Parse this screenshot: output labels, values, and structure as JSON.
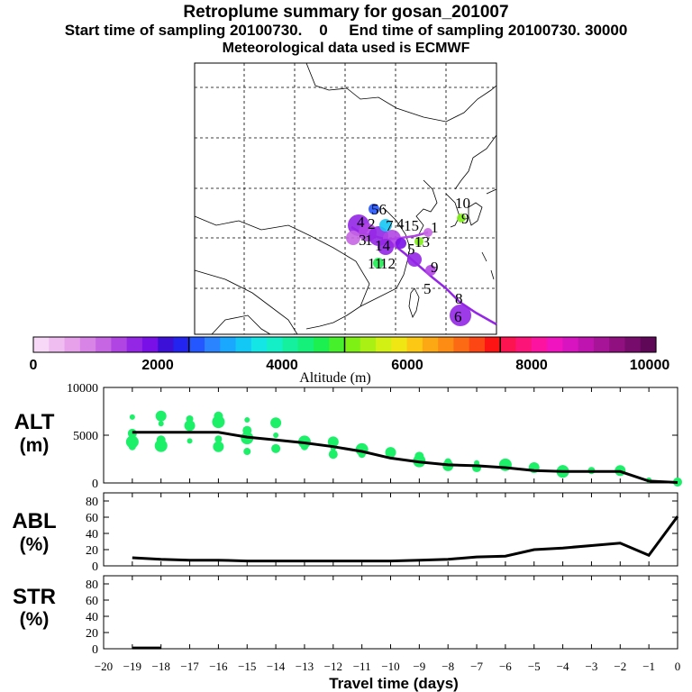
{
  "header": {
    "title": "Retroplume summary for gosan_201007",
    "line2": "Start time of sampling 20100730.    0     End time of sampling 20100730. 30000",
    "line3": "Meteorological data used is ECMWF"
  },
  "colorbar": {
    "ticks": [
      "0",
      "2000",
      "4000",
      "6000",
      "8000",
      "10000"
    ],
    "label": "Altitude (m)",
    "colors": [
      "#f7d9f7",
      "#efbdef",
      "#e6a1ea",
      "#d884e6",
      "#c766e3",
      "#b145e4",
      "#9426e6",
      "#7a10e8",
      "#3c10d6",
      "#2424f0",
      "#2457ff",
      "#2a84ff",
      "#1aa8ff",
      "#14c8f6",
      "#14e6e6",
      "#14efc8",
      "#14f09e",
      "#14f07a",
      "#1cf050",
      "#46f02a",
      "#7ef014",
      "#aaf014",
      "#d2f014",
      "#f0e614",
      "#fcc814",
      "#fca814",
      "#fc8c14",
      "#fc6a14",
      "#fc4614",
      "#fc1414",
      "#fc1450",
      "#fc1478",
      "#fc14a0",
      "#f014c0",
      "#d814c0",
      "#c014b0",
      "#a81498",
      "#901080",
      "#780c6c",
      "#600858"
    ]
  },
  "map": {
    "labels": [
      "56",
      "2",
      "4",
      "3",
      "1",
      "15",
      "7",
      "11",
      "12",
      "5",
      "9",
      "10",
      "6",
      "5",
      "8",
      "1",
      "9",
      "13",
      "4",
      "14"
    ]
  },
  "chart_data": [
    {
      "type": "line",
      "title": "ALT",
      "ylabel": "(m)",
      "ylim": [
        0,
        10000
      ],
      "yticks": [
        "10000",
        "5000",
        "0"
      ],
      "x": [
        -19,
        -18,
        -17,
        -16,
        -15,
        -14,
        -13,
        -12,
        -11,
        -10,
        -9,
        -8,
        -7,
        -6,
        -5,
        -4,
        -3,
        -2,
        -1,
        0
      ],
      "values": [
        5300,
        5300,
        5300,
        5300,
        4800,
        4500,
        4200,
        3800,
        3300,
        2600,
        2200,
        1900,
        1800,
        1600,
        1300,
        1200,
        1200,
        1200,
        200,
        50
      ],
      "scatter": [
        [
          -19,
          6900
        ],
        [
          -19,
          5200
        ],
        [
          -19,
          4300
        ],
        [
          -19,
          3800
        ],
        [
          -18,
          7000
        ],
        [
          -18,
          6200
        ],
        [
          -18,
          4500
        ],
        [
          -18,
          3900
        ],
        [
          -17,
          6700
        ],
        [
          -17,
          6000
        ],
        [
          -17,
          4400
        ],
        [
          -16,
          7000
        ],
        [
          -16,
          6400
        ],
        [
          -16,
          4600
        ],
        [
          -16,
          3800
        ],
        [
          -15,
          6600
        ],
        [
          -15,
          5500
        ],
        [
          -15,
          4700
        ],
        [
          -15,
          3300
        ],
        [
          -14,
          6300
        ],
        [
          -14,
          5000
        ],
        [
          -14,
          3600
        ],
        [
          -13,
          4300
        ],
        [
          -13,
          3800
        ],
        [
          -12,
          4300
        ],
        [
          -12,
          3600
        ],
        [
          -12,
          3000
        ],
        [
          -11,
          3500
        ],
        [
          -11,
          3000
        ],
        [
          -10,
          3200
        ],
        [
          -10,
          2800
        ],
        [
          -9,
          2800
        ],
        [
          -9,
          2300
        ],
        [
          -8,
          2200
        ],
        [
          -8,
          1800
        ],
        [
          -7,
          2100
        ],
        [
          -7,
          1600
        ],
        [
          -6,
          1900
        ],
        [
          -6,
          1700
        ],
        [
          -5,
          1600
        ],
        [
          -5,
          1400
        ],
        [
          -4,
          1400
        ],
        [
          -4,
          1200
        ],
        [
          -3,
          1300
        ],
        [
          -2,
          1300
        ],
        [
          -1,
          300
        ],
        [
          0,
          100
        ]
      ]
    },
    {
      "type": "line",
      "title": "ABL",
      "ylabel": "(%)",
      "ylim": [
        0,
        90
      ],
      "yticks": [
        "80",
        "60",
        "40",
        "20",
        "0"
      ],
      "x": [
        -19,
        -18,
        -17,
        -16,
        -15,
        -14,
        -13,
        -12,
        -11,
        -10,
        -9,
        -8,
        -7,
        -6,
        -5,
        -4,
        -3,
        -2,
        -1,
        0
      ],
      "values": [
        10,
        8,
        7,
        7,
        6,
        6,
        6,
        6,
        6,
        6,
        7,
        8,
        11,
        12,
        20,
        22,
        25,
        28,
        13,
        61
      ]
    },
    {
      "type": "line",
      "title": "STR",
      "ylabel": "(%)",
      "ylim": [
        0,
        90
      ],
      "yticks": [
        "80",
        "60",
        "40",
        "20",
        "0"
      ],
      "x": [
        -19,
        -18
      ],
      "values": [
        1,
        1
      ],
      "xlabel": "Travel time (days)",
      "xticks": [
        "-20",
        "-19",
        "-18",
        "-17",
        "-16",
        "-15",
        "-14",
        "-13",
        "-12",
        "-11",
        "-10",
        "-9",
        "-8",
        "-7",
        "-6",
        "-5",
        "-4",
        "-3",
        "-2",
        "-1",
        "0"
      ]
    }
  ]
}
